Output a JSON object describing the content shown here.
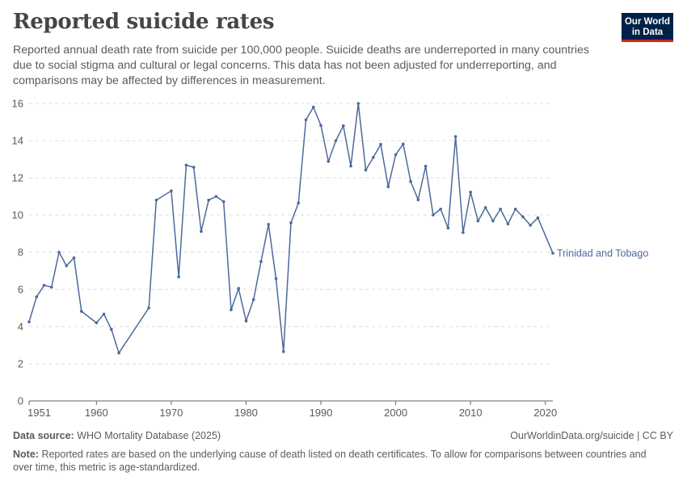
{
  "header": {
    "title": "Reported suicide rates",
    "subtitle": "Reported annual death rate from suicide per 100,000 people. Suicide deaths are underreported in many countries due to social stigma and cultural or legal concerns. This data has not been adjusted for underreporting, and comparisons may be affected by differences in measurement.",
    "logo_line1": "Our World",
    "logo_line2": "in Data"
  },
  "footer": {
    "source_label": "Data source:",
    "source_text": "WHO Mortality Database (2025)",
    "credit": "OurWorldinData.org/suicide | CC BY",
    "note_label": "Note:",
    "note_text": "Reported rates are based on the underlying cause of death listed on death certificates. To allow for comparisons between countries and over time, this metric is age-standardized."
  },
  "colors": {
    "series": "#4c6a9c",
    "grid": "#dddddd",
    "axis": "#666666",
    "text": "#5b5b5b"
  },
  "chart_data": {
    "type": "line",
    "title": "Reported suicide rates",
    "xlabel": "",
    "ylabel": "",
    "xlim": [
      1951,
      2021
    ],
    "ylim": [
      0,
      16
    ],
    "yticks": [
      0,
      2,
      4,
      6,
      8,
      10,
      12,
      14,
      16
    ],
    "xticks": [
      1951,
      1960,
      1970,
      1980,
      1990,
      2000,
      2010,
      2020
    ],
    "grid": "horizontal-dashed",
    "series": [
      {
        "name": "Trinidad and Tobago",
        "x": [
          1951,
          1952,
          1953,
          1954,
          1955,
          1956,
          1957,
          1958,
          1960,
          1961,
          1962,
          1963,
          1967,
          1968,
          1970,
          1971,
          1972,
          1973,
          1974,
          1975,
          1976,
          1977,
          1978,
          1979,
          1980,
          1981,
          1982,
          1983,
          1984,
          1985,
          1986,
          1987,
          1988,
          1989,
          1990,
          1991,
          1992,
          1993,
          1994,
          1995,
          1996,
          1997,
          1998,
          1999,
          2000,
          2001,
          2002,
          2003,
          2004,
          2005,
          2006,
          2007,
          2008,
          2009,
          2010,
          2011,
          2012,
          2013,
          2014,
          2015,
          2016,
          2017,
          2018,
          2019,
          2021
        ],
        "values": [
          4.25,
          5.6,
          6.22,
          6.12,
          8.0,
          7.27,
          7.7,
          4.82,
          4.2,
          4.67,
          3.85,
          2.58,
          5.0,
          10.8,
          11.3,
          6.67,
          12.68,
          12.57,
          9.12,
          10.8,
          11.0,
          10.72,
          4.9,
          6.05,
          4.3,
          5.45,
          7.5,
          9.5,
          6.58,
          2.65,
          9.58,
          10.65,
          15.12,
          15.8,
          14.82,
          12.88,
          14.0,
          14.8,
          12.63,
          16.0,
          12.42,
          13.1,
          13.8,
          11.52,
          13.25,
          13.82,
          11.8,
          10.82,
          12.63,
          10.0,
          10.32,
          9.3,
          14.22,
          9.06,
          11.23,
          9.68,
          10.4,
          9.68,
          10.32,
          9.52,
          10.32,
          9.9,
          9.45,
          9.85,
          7.95
        ]
      }
    ]
  }
}
